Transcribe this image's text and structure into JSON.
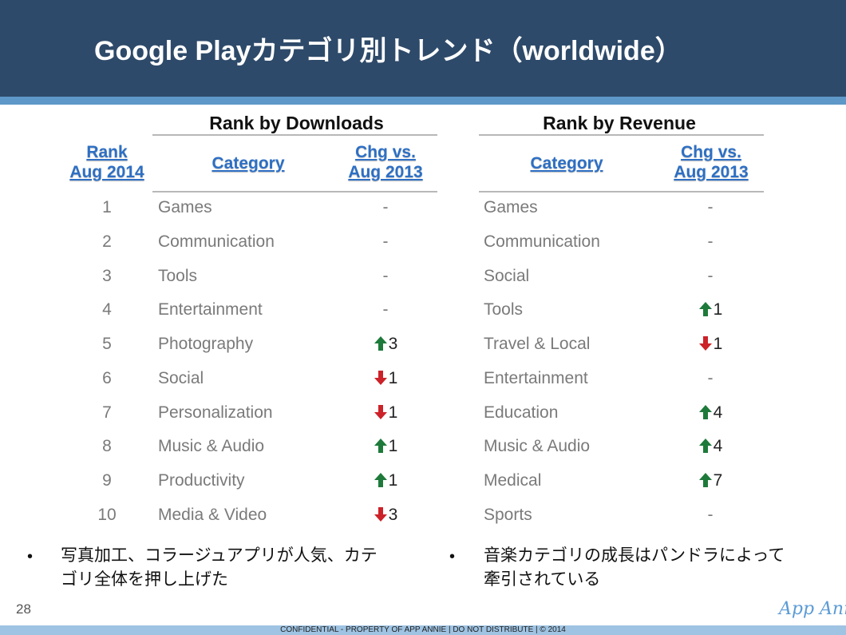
{
  "title": "Google Playカテゴリ別トレンド（worldwide）",
  "downloads": {
    "group_title": "Rank by Downloads",
    "rank_header_1": "Rank",
    "rank_header_2": "Aug 2014",
    "category_header": "Category",
    "chg_header_1": "Chg vs.",
    "chg_header_2": "Aug 2013",
    "rows": [
      {
        "rank": "1",
        "category": "Games",
        "dir": "none",
        "chg": "-"
      },
      {
        "rank": "2",
        "category": "Communication",
        "dir": "none",
        "chg": "-"
      },
      {
        "rank": "3",
        "category": "Tools",
        "dir": "none",
        "chg": "-"
      },
      {
        "rank": "4",
        "category": "Entertainment",
        "dir": "none",
        "chg": "-"
      },
      {
        "rank": "5",
        "category": "Photography",
        "dir": "up",
        "chg": "3"
      },
      {
        "rank": "6",
        "category": "Social",
        "dir": "down",
        "chg": "1"
      },
      {
        "rank": "7",
        "category": "Personalization",
        "dir": "down",
        "chg": "1"
      },
      {
        "rank": "8",
        "category": "Music & Audio",
        "dir": "up",
        "chg": "1"
      },
      {
        "rank": "9",
        "category": "Productivity",
        "dir": "up",
        "chg": "1"
      },
      {
        "rank": "10",
        "category": "Media & Video",
        "dir": "down",
        "chg": "3"
      }
    ]
  },
  "revenue": {
    "group_title": "Rank by Revenue",
    "category_header": "Category",
    "chg_header_1": "Chg vs.",
    "chg_header_2": "Aug 2013",
    "rows": [
      {
        "category": "Games",
        "dir": "none",
        "chg": "-"
      },
      {
        "category": "Communication",
        "dir": "none",
        "chg": "-"
      },
      {
        "category": "Social",
        "dir": "none",
        "chg": "-"
      },
      {
        "category": "Tools",
        "dir": "up",
        "chg": "1"
      },
      {
        "category": "Travel & Local",
        "dir": "down",
        "chg": "1"
      },
      {
        "category": "Entertainment",
        "dir": "none",
        "chg": "-"
      },
      {
        "category": "Education",
        "dir": "up",
        "chg": "4"
      },
      {
        "category": "Music & Audio",
        "dir": "up",
        "chg": "4"
      },
      {
        "category": "Medical",
        "dir": "up",
        "chg": "7"
      },
      {
        "category": "Sports",
        "dir": "none",
        "chg": "-"
      }
    ]
  },
  "bullets": {
    "left_line1": "写真加工、コラージュアプリが人気、カテ",
    "left_line2": "ゴリ全体を押し上げた",
    "right_line1": "音楽カテゴリの成長はパンドラによって",
    "right_line2": "牽引されている"
  },
  "page_number": "28",
  "brand": "App Annie",
  "footer": "CONFIDENTIAL - PROPERTY OF APP ANNIE  |  DO NOT DISTRIBUTE  |  © 2014",
  "colors": {
    "header_bg": "#2e4a6a",
    "stripe": "#5d98c8",
    "header_link": "#2d6fc4",
    "arrow_up": "#1e7a3a",
    "arrow_down": "#cc2229",
    "body_text": "#7a7a7a"
  },
  "icons": {
    "up": "arrow-up-icon",
    "down": "arrow-down-icon"
  }
}
